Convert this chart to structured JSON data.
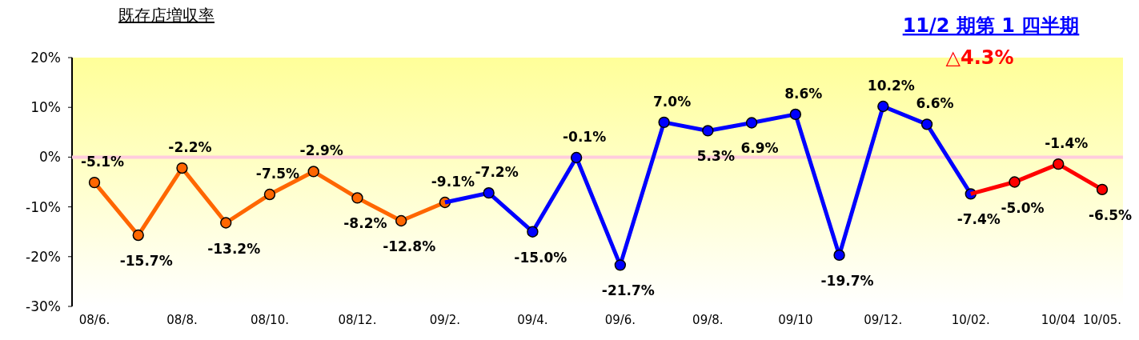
{
  "chart_data": {
    "type": "line",
    "title": "既存店増収率",
    "annotations": [
      "11/2 期第 1 四半期",
      "△4.3%"
    ],
    "categories": [
      "08/6.",
      null,
      "08/8.",
      null,
      "08/10.",
      null,
      "08/12.",
      null,
      "09/2.",
      null,
      "09/4.",
      null,
      "09/6.",
      null,
      "09/8.",
      null,
      "09/10",
      null,
      "09/12.",
      null,
      "10/02.",
      null,
      "10/04",
      "10/05."
    ],
    "series": [
      {
        "color": "#ff6600",
        "values": [
          -5.1,
          -15.7,
          -2.2,
          -13.2,
          -7.5,
          -2.9,
          -8.2,
          -12.8,
          -9.1,
          null,
          null,
          null,
          null,
          null,
          null,
          null,
          null,
          null,
          null,
          null,
          null,
          null,
          null,
          null
        ],
        "value_labels": [
          "-5.1%",
          "-15.7%",
          "-2.2%",
          "-13.2%",
          "-7.5%",
          "-2.9%",
          "-8.2%",
          "-12.8%",
          "-9.1%",
          null,
          null,
          null,
          null,
          null,
          null,
          null,
          null,
          null,
          null,
          null,
          null,
          null,
          null,
          null
        ]
      },
      {
        "color": "#0000ff",
        "values": [
          null,
          null,
          null,
          null,
          null,
          null,
          null,
          null,
          -9.1,
          -7.2,
          -15.0,
          -0.1,
          -21.7,
          7.0,
          5.3,
          6.9,
          8.6,
          -19.7,
          10.2,
          6.6,
          -7.4,
          null,
          null,
          null
        ],
        "value_labels": [
          null,
          null,
          null,
          null,
          null,
          null,
          null,
          null,
          null,
          "-7.2%",
          "-15.0%",
          "-0.1%",
          "-21.7%",
          "7.0%",
          "5.3%",
          "6.9%",
          "8.6%",
          "-19.7%",
          "10.2%",
          "6.6%",
          "-7.4%",
          null,
          null,
          null
        ]
      },
      {
        "color": "#ff0000",
        "values": [
          null,
          null,
          null,
          null,
          null,
          null,
          null,
          null,
          null,
          null,
          null,
          null,
          null,
          null,
          null,
          null,
          null,
          null,
          null,
          null,
          -7.4,
          -5.0,
          -1.4,
          -6.5
        ],
        "value_labels": [
          null,
          null,
          null,
          null,
          null,
          null,
          null,
          null,
          null,
          null,
          null,
          null,
          null,
          null,
          null,
          null,
          null,
          null,
          null,
          null,
          null,
          "-5.0%",
          "-1.4%",
          "-6.5%"
        ]
      }
    ],
    "ylim": [
      -30,
      20
    ],
    "yticks": [
      {
        "value": -30,
        "label": "-30%"
      },
      {
        "value": -20,
        "label": "-20%"
      },
      {
        "value": -10,
        "label": "-10%"
      },
      {
        "value": 0,
        "label": "0%"
      },
      {
        "value": 10,
        "label": "10%"
      },
      {
        "value": 20,
        "label": "20%"
      }
    ],
    "ref_lines": [
      {
        "axis": "y",
        "value": 0,
        "color": "#ffccdd"
      }
    ],
    "marker": "circle",
    "line_style": "solid",
    "grid": false
  }
}
